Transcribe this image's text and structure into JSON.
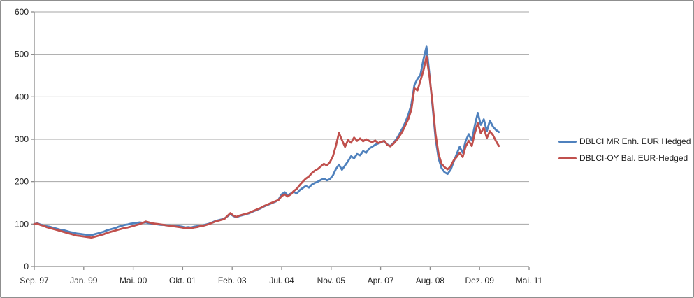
{
  "chart_data": {
    "type": "line",
    "title": "",
    "grid": "horizontal",
    "legend_position": "right",
    "x_axis": {
      "tick_labels": [
        "Sep. 97",
        "Jan. 99",
        "Mai. 00",
        "Okt. 01",
        "Feb. 03",
        "Jul. 04",
        "Nov. 05",
        "Apr. 07",
        "Aug. 08",
        "Dez. 09",
        "Mai. 11"
      ],
      "start": "1997-09",
      "end": "2011-05",
      "total_months": 164,
      "point_interval": "monthly"
    },
    "y_axis": {
      "ticks": [
        0,
        100,
        200,
        300,
        400,
        500,
        600
      ],
      "range": [
        0,
        600
      ]
    },
    "series": [
      {
        "name": "DBLCI MR Enh. EUR Hedged",
        "color": "#4F81BD",
        "values": [
          100,
          102,
          99,
          97,
          95,
          94,
          92,
          90,
          88,
          86,
          85,
          83,
          81,
          80,
          78,
          77,
          76,
          75,
          74,
          74,
          76,
          78,
          80,
          82,
          85,
          87,
          89,
          91,
          94,
          96,
          98,
          99,
          101,
          102,
          103,
          104,
          103,
          104,
          102,
          101,
          100,
          99,
          98,
          98,
          97,
          97,
          96,
          96,
          95,
          94,
          92,
          93,
          92,
          94,
          95,
          96,
          97,
          99,
          101,
          104,
          107,
          109,
          111,
          113,
          118,
          124,
          119,
          116,
          119,
          121,
          123,
          125,
          128,
          131,
          134,
          137,
          141,
          144,
          147,
          150,
          153,
          158,
          170,
          175,
          168,
          172,
          176,
          172,
          180,
          185,
          190,
          186,
          193,
          197,
          200,
          204,
          207,
          203,
          206,
          215,
          230,
          240,
          228,
          238,
          248,
          260,
          255,
          265,
          262,
          272,
          268,
          278,
          282,
          287,
          290,
          293,
          296,
          288,
          284,
          291,
          300,
          312,
          325,
          340,
          358,
          382,
          428,
          442,
          452,
          488,
          518,
          452,
          378,
          302,
          255,
          232,
          222,
          218,
          228,
          247,
          265,
          282,
          268,
          296,
          312,
          297,
          332,
          362,
          334,
          347,
          319,
          344,
          330,
          322,
          317
        ]
      },
      {
        "name": "DBLCI-OY Bal. EUR-Hedged",
        "color": "#C0504D",
        "values": [
          100,
          101,
          98,
          96,
          93,
          91,
          89,
          87,
          85,
          83,
          81,
          79,
          77,
          75,
          73,
          72,
          71,
          70,
          69,
          68,
          70,
          72,
          74,
          76,
          79,
          81,
          83,
          85,
          87,
          89,
          91,
          92,
          94,
          96,
          98,
          100,
          103,
          106,
          104,
          102,
          101,
          100,
          99,
          98,
          97,
          96,
          95,
          94,
          93,
          92,
          90,
          91,
          90,
          92,
          93,
          95,
          96,
          98,
          100,
          103,
          106,
          108,
          110,
          112,
          119,
          126,
          120,
          117,
          120,
          122,
          124,
          126,
          129,
          132,
          135,
          138,
          142,
          145,
          148,
          151,
          154,
          157,
          166,
          170,
          165,
          170,
          178,
          183,
          192,
          200,
          207,
          212,
          220,
          226,
          230,
          236,
          242,
          238,
          246,
          260,
          285,
          315,
          298,
          282,
          298,
          292,
          304,
          296,
          302,
          295,
          300,
          296,
          293,
          297,
          291,
          294,
          296,
          287,
          283,
          289,
          297,
          307,
          318,
          333,
          348,
          370,
          420,
          415,
          438,
          462,
          495,
          448,
          385,
          312,
          265,
          242,
          234,
          229,
          236,
          250,
          258,
          268,
          258,
          283,
          296,
          284,
          314,
          338,
          314,
          327,
          303,
          319,
          310,
          296,
          284
        ]
      }
    ]
  },
  "colors": {
    "axis": "#8c8c8c",
    "gridline": "#a6a6a6",
    "text": "#1f1f1f",
    "border": "#8f8f8f",
    "background": "#ffffff"
  }
}
